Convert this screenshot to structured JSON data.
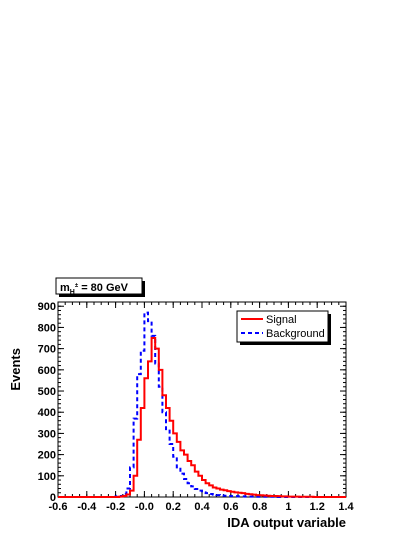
{
  "mass_label": {
    "prefix": "m",
    "subscript": "H",
    "superscript": "±",
    "value_text": " = 80 GeV"
  },
  "chart_data": {
    "type": "histogram",
    "xlabel": "IDA output variable",
    "ylabel": "Events",
    "xlim": [
      -0.6,
      1.4
    ],
    "ylim": [
      0,
      920
    ],
    "x_ticks": [
      -0.6,
      -0.4,
      -0.2,
      0,
      0.2,
      0.4,
      0.6,
      0.8,
      1,
      1.2,
      1.4
    ],
    "x_tick_labels": [
      "-0.6",
      "-0.4",
      "-0.2",
      "-0.0",
      "0.2",
      "0.4",
      "0.6",
      "0.8",
      "1",
      "1.2",
      "1.4"
    ],
    "y_ticks": [
      0,
      100,
      200,
      300,
      400,
      500,
      600,
      700,
      800,
      900
    ],
    "y_tick_labels": [
      "0",
      "100",
      "200",
      "300",
      "400",
      "500",
      "600",
      "700",
      "800",
      "900"
    ],
    "grid": false,
    "legend_position": "top-right",
    "bin_edges_start": -0.6,
    "bin_width": 0.025,
    "series": [
      {
        "name": "Signal",
        "color": "#ff0000",
        "line_style": "solid",
        "values": [
          0,
          0,
          0,
          0,
          0,
          0,
          0,
          0,
          0,
          0,
          0,
          0,
          0,
          0,
          0,
          0,
          0,
          2,
          5,
          12,
          30,
          100,
          270,
          420,
          560,
          640,
          750,
          700,
          600,
          480,
          420,
          360,
          300,
          260,
          220,
          200,
          170,
          150,
          120,
          100,
          80,
          65,
          55,
          45,
          40,
          35,
          32,
          28,
          25,
          22,
          20,
          18,
          15,
          13,
          11,
          9,
          8,
          7,
          6,
          5,
          5,
          4,
          3,
          3,
          2,
          2,
          2,
          1,
          1,
          1,
          1,
          0,
          0,
          0,
          0,
          0,
          0,
          0,
          0,
          0
        ]
      },
      {
        "name": "Background",
        "color": "#0000ff",
        "line_style": "dashed",
        "values": [
          0,
          0,
          0,
          0,
          0,
          0,
          0,
          0,
          0,
          0,
          0,
          0,
          0,
          0,
          0,
          0,
          3,
          5,
          15,
          40,
          140,
          370,
          580,
          690,
          870,
          830,
          760,
          630,
          520,
          400,
          320,
          250,
          190,
          140,
          110,
          85,
          65,
          50,
          38,
          30,
          22,
          18,
          14,
          11,
          9,
          7,
          6,
          5,
          4,
          4,
          3,
          3,
          2,
          2,
          2,
          1,
          1,
          1,
          1,
          1,
          1,
          0,
          0,
          0,
          0,
          0,
          0,
          0,
          0,
          0,
          0,
          0,
          0,
          0,
          0,
          0,
          0,
          0,
          0,
          0
        ]
      }
    ]
  }
}
